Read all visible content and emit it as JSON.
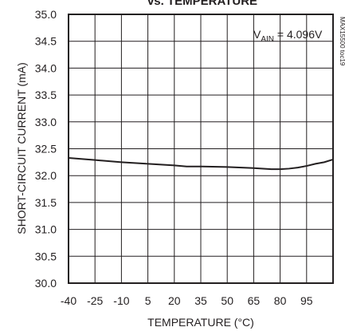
{
  "chart_data": {
    "type": "line",
    "title": "vs. TEMPERATURE",
    "xlabel": "TEMPERATURE (°C)",
    "ylabel": "SHORT-CIRCUIT CURRENT (mA)",
    "xlim": [
      -40,
      110
    ],
    "ylim": [
      30.0,
      35.0
    ],
    "x_ticks": [
      -40,
      -25,
      -10,
      5,
      20,
      35,
      50,
      65,
      80,
      95
    ],
    "y_ticks": [
      "30.0",
      "30.5",
      "31.0",
      "31.5",
      "32.0",
      "32.5",
      "33.0",
      "33.5",
      "34.0",
      "34.5",
      "35.0"
    ],
    "grid": true,
    "series": [
      {
        "x": [
          -40,
          -25,
          -10,
          5,
          20,
          27,
          35,
          50,
          65,
          75,
          80,
          85,
          90,
          95,
          100,
          105,
          110
        ],
        "y": [
          32.33,
          32.29,
          32.25,
          32.22,
          32.19,
          32.17,
          32.17,
          32.16,
          32.14,
          32.12,
          32.12,
          32.13,
          32.15,
          32.18,
          32.22,
          32.25,
          32.3
        ]
      }
    ],
    "annotation": {
      "prefix": "V",
      "sub": "AIN",
      "value": " = 4.096V"
    },
    "side_label": "MAX15500 toc19"
  },
  "colors": {
    "line": "#231f20",
    "grid": "#231f20",
    "text": "#231f20"
  }
}
